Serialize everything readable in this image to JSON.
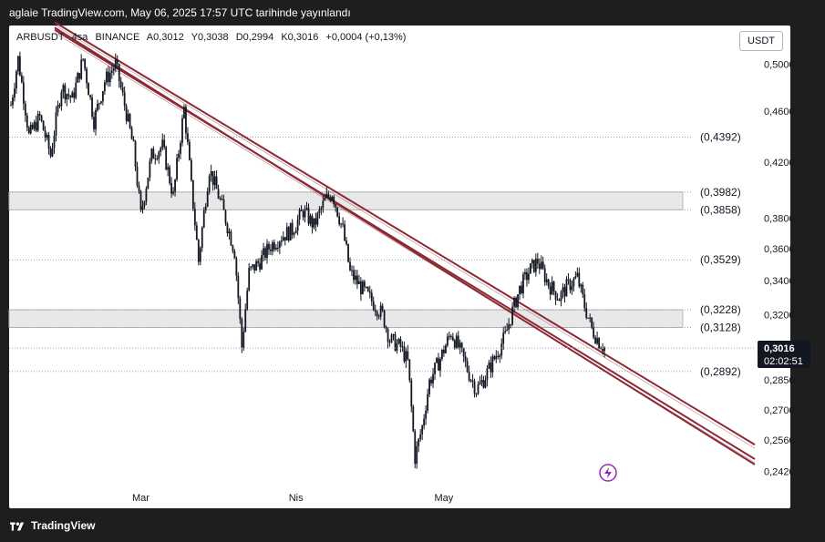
{
  "header": {
    "publish_text": "aglaie TradingView.com, May 06, 2025 17:57 UTC tarihinde yayınlandı"
  },
  "ticker": {
    "symbol": "ARBUSDT",
    "interval": "4sa",
    "exchange": "BINANCE",
    "open": "A0,3012",
    "high": "Y0,3038",
    "low": "D0,2994",
    "close": "K0,3016",
    "change": "+0,0004 (+0,13%)"
  },
  "currency": "USDT",
  "footer": {
    "brand": "TradingView"
  },
  "price_badge": {
    "price": "0,3016",
    "countdown": "02:02:51"
  },
  "chart_data": {
    "type": "candlestick",
    "x_ticks": [
      "Mar",
      "Nis",
      "May"
    ],
    "y_ticks": [
      0.5,
      0.46,
      0.42,
      0.38,
      0.36,
      0.34,
      0.32,
      0.285,
      0.27,
      0.256,
      0.242
    ],
    "y_tick_labels": [
      "0,5000",
      "0,4600",
      "0,4200",
      "0,3800",
      "0,3600",
      "0,3400",
      "0,3200",
      "0,2850",
      "0,2700",
      "0,2560",
      "0,2420"
    ],
    "ylim": [
      0.236,
      0.512
    ],
    "y_scale": "log",
    "levels": [
      {
        "value": 0.4392,
        "label": "(0,4392)"
      },
      {
        "value": 0.3982,
        "label": "(0,3982)"
      },
      {
        "value": 0.3858,
        "label": "(0,3858)"
      },
      {
        "value": 0.3529,
        "label": "(0,3529)"
      },
      {
        "value": 0.3228,
        "label": "(0,3228)"
      },
      {
        "value": 0.3128,
        "label": "(0,3128)"
      },
      {
        "value": 0.2892,
        "label": "(0,2892)"
      }
    ],
    "zones": [
      {
        "from": 0.3858,
        "to": 0.3982
      },
      {
        "from": 0.3128,
        "to": 0.3228
      }
    ],
    "channel": {
      "start_price_upper": 0.515,
      "end_price_upper": 0.2555,
      "start_price_lower": 0.508,
      "end_price_lower": 0.249,
      "color": "#8b2a35"
    },
    "path_points": [
      [
        0,
        0.465
      ],
      [
        4,
        0.505
      ],
      [
        10,
        0.44
      ],
      [
        16,
        0.455
      ],
      [
        22,
        0.425
      ],
      [
        28,
        0.48
      ],
      [
        34,
        0.47
      ],
      [
        40,
        0.505
      ],
      [
        46,
        0.452
      ],
      [
        52,
        0.485
      ],
      [
        58,
        0.5
      ],
      [
        62,
        0.472
      ],
      [
        68,
        0.43
      ],
      [
        72,
        0.382
      ],
      [
        78,
        0.425
      ],
      [
        84,
        0.432
      ],
      [
        90,
        0.395
      ],
      [
        96,
        0.462
      ],
      [
        100,
        0.402
      ],
      [
        104,
        0.352
      ],
      [
        110,
        0.415
      ],
      [
        116,
        0.392
      ],
      [
        120,
        0.375
      ],
      [
        124,
        0.358
      ],
      [
        128,
        0.302
      ],
      [
        132,
        0.345
      ],
      [
        138,
        0.352
      ],
      [
        144,
        0.362
      ],
      [
        150,
        0.368
      ],
      [
        156,
        0.372
      ],
      [
        162,
        0.385
      ],
      [
        168,
        0.375
      ],
      [
        174,
        0.392
      ],
      [
        178,
        0.398
      ],
      [
        184,
        0.372
      ],
      [
        188,
        0.345
      ],
      [
        194,
        0.336
      ],
      [
        200,
        0.328
      ],
      [
        206,
        0.32
      ],
      [
        210,
        0.306
      ],
      [
        216,
        0.302
      ],
      [
        220,
        0.294
      ],
      [
        224,
        0.248
      ],
      [
        228,
        0.262
      ],
      [
        232,
        0.284
      ],
      [
        238,
        0.296
      ],
      [
        244,
        0.31
      ],
      [
        250,
        0.298
      ],
      [
        254,
        0.288
      ],
      [
        258,
        0.28
      ],
      [
        262,
        0.285
      ],
      [
        268,
        0.296
      ],
      [
        274,
        0.308
      ],
      [
        278,
        0.322
      ],
      [
        282,
        0.335
      ],
      [
        288,
        0.347
      ],
      [
        292,
        0.352
      ],
      [
        298,
        0.338
      ],
      [
        304,
        0.33
      ],
      [
        308,
        0.336
      ],
      [
        314,
        0.342
      ],
      [
        318,
        0.325
      ],
      [
        322,
        0.312
      ],
      [
        326,
        0.305
      ],
      [
        329,
        0.3016
      ]
    ],
    "x_total": 330,
    "x_tick_positions": [
      72,
      158,
      240
    ]
  },
  "colors": {
    "background": "#ffffff",
    "candle": "#131722",
    "grid_dot": "#a0a3ab",
    "zone_fill": "#e8e8e8",
    "zone_border": "#b8b8b8",
    "label_text": "#131722",
    "badge_bg": "#131722",
    "lightning": "#9c27b0"
  }
}
